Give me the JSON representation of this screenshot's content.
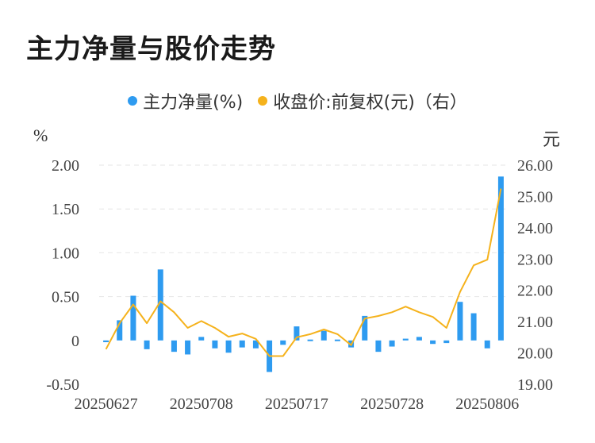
{
  "title": "主力净量与股价走势",
  "legend": {
    "net_label": "主力净量(%)",
    "price_label": "收盘价:前复权(元)（右）",
    "net_color": "#2e9bf0",
    "price_color": "#f5b21c"
  },
  "units": {
    "left": "%",
    "right": "元"
  },
  "chart_data": {
    "type": "bar+line",
    "title": "主力净量与股价走势",
    "x_tick_labels": [
      "20250627",
      "20250708",
      "20250717",
      "20250728",
      "20250806"
    ],
    "x_tick_indices": [
      0,
      7,
      14,
      21,
      28
    ],
    "y_left": {
      "label": "%",
      "range": [
        -0.5,
        2.0
      ],
      "ticks": [
        "-0.50",
        "0",
        "0.50",
        "1.00",
        "1.50",
        "2.00"
      ]
    },
    "y_right": {
      "label": "元",
      "range": [
        19.0,
        26.0
      ],
      "ticks": [
        "19.00",
        "20.00",
        "21.00",
        "22.00",
        "23.00",
        "24.00",
        "25.00",
        "26.00"
      ]
    },
    "grid": "horizontal dashed",
    "legend_position": "top-center",
    "series": [
      {
        "name": "主力净量(%)",
        "kind": "bar",
        "values": [
          -0.02,
          0.23,
          0.51,
          -0.1,
          0.81,
          -0.13,
          -0.16,
          0.04,
          -0.09,
          -0.14,
          -0.08,
          -0.09,
          -0.36,
          -0.05,
          0.16,
          0.01,
          0.11,
          0.01,
          -0.08,
          0.28,
          -0.13,
          -0.07,
          0.02,
          0.04,
          -0.04,
          -0.03,
          0.44,
          0.31,
          -0.09,
          1.87
        ]
      },
      {
        "name": "收盘价:前复权(元)（右）",
        "kind": "line",
        "values": [
          20.12,
          20.95,
          21.55,
          20.95,
          21.65,
          21.3,
          20.8,
          21.02,
          20.8,
          20.52,
          20.62,
          20.45,
          19.9,
          19.9,
          20.5,
          20.6,
          20.75,
          20.6,
          20.25,
          21.1,
          21.18,
          21.3,
          21.48,
          21.3,
          21.15,
          20.8,
          21.95,
          22.8,
          22.98,
          25.25
        ]
      }
    ]
  }
}
